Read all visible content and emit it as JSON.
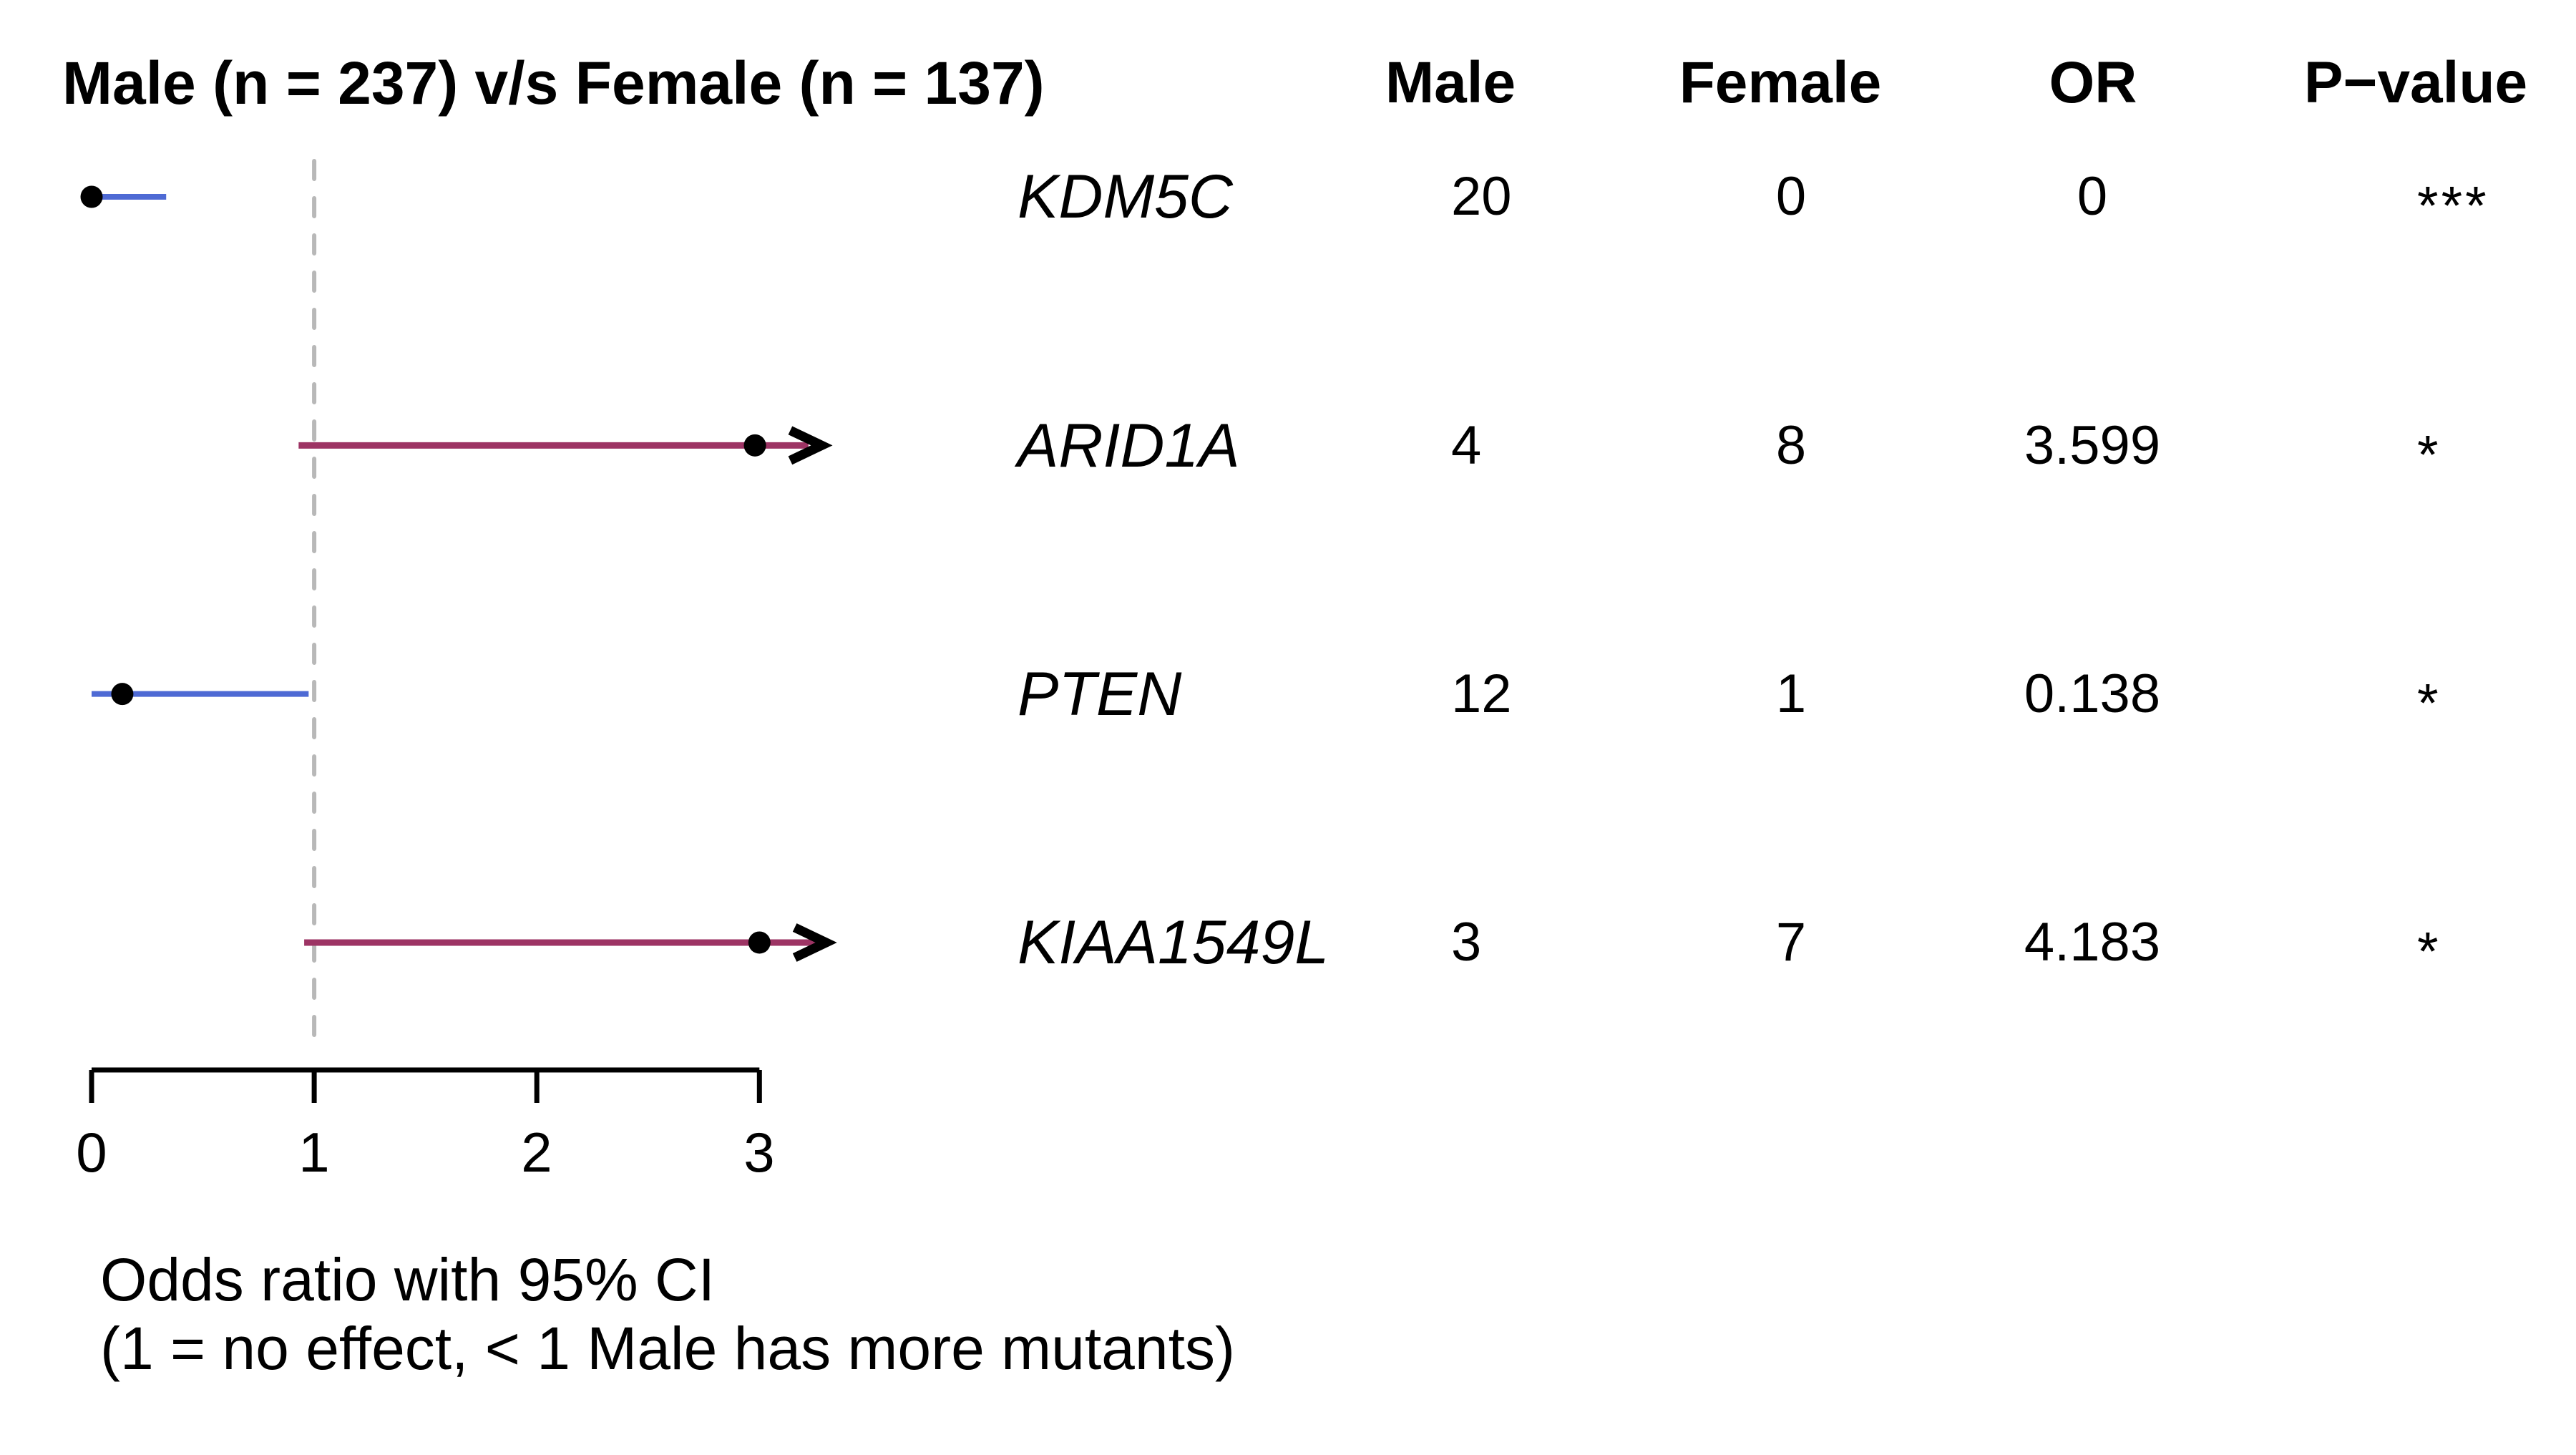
{
  "title": "Male (n = 237) v/s Female (n = 137)",
  "table": {
    "headers": {
      "male": "Male",
      "female": "Female",
      "or": "OR",
      "pvalue": "P−value"
    },
    "rows": [
      {
        "gene": "KDM5C",
        "male": "20",
        "female": "0",
        "or": "0",
        "p": "***"
      },
      {
        "gene": "ARID1A",
        "male": "4",
        "female": "8",
        "or": "3.599",
        "p": "*"
      },
      {
        "gene": "PTEN",
        "male": "12",
        "female": "1",
        "or": "0.138",
        "p": "*"
      },
      {
        "gene": "KIAA1549L",
        "male": "3",
        "female": "7",
        "or": "4.183",
        "p": "*"
      }
    ]
  },
  "axis": {
    "ticks": [
      "0",
      "1",
      "2",
      "3"
    ]
  },
  "caption": {
    "line1": "Odds ratio with 95% CI",
    "line2": "(1 = no effect, < 1 Male has more mutants)"
  },
  "colors": {
    "ci_blue": "#4e6ad4",
    "ci_maroon": "#9d3464",
    "marker_black": "#000000",
    "reference_dash_gray": "#b8b8b8"
  },
  "chart_data": {
    "type": "forest",
    "title": "Male (n = 237) v/s Female (n = 137)",
    "xlabel": "Odds ratio with 95% CI",
    "note": "(1 = no effect, < 1 Male has more mutants)",
    "xlim": [
      0,
      3.35
    ],
    "x_ticks": [
      0,
      1,
      2,
      3
    ],
    "reference_line": 1,
    "grid": false,
    "rows": [
      {
        "gene": "KDM5C",
        "male_count": 20,
        "female_count": 0,
        "odds_ratio": 0,
        "p_signif": "***",
        "dot": 0,
        "ci_low": 0,
        "ci_high": 0.335,
        "clamped": false,
        "arrow_at": null,
        "color": "#4e6ad4"
      },
      {
        "gene": "ARID1A",
        "male_count": 4,
        "female_count": 8,
        "odds_ratio": 3.599,
        "p_signif": "*",
        "dot": 2.98,
        "ci_low": 0.93,
        "ci_high": 3.22,
        "clamped": true,
        "arrow_at": 3.28,
        "color": "#9d3464"
      },
      {
        "gene": "PTEN",
        "male_count": 12,
        "female_count": 1,
        "odds_ratio": 0.138,
        "p_signif": "*",
        "dot": 0.138,
        "ci_low": 0,
        "ci_high": 0.975,
        "clamped": false,
        "arrow_at": null,
        "color": "#4e6ad4"
      },
      {
        "gene": "KIAA1549L",
        "male_count": 3,
        "female_count": 7,
        "odds_ratio": 4.183,
        "p_signif": "*",
        "dot": 3.0,
        "ci_low": 0.955,
        "ci_high": 3.26,
        "clamped": true,
        "arrow_at": 3.3,
        "color": "#9d3464"
      }
    ]
  }
}
